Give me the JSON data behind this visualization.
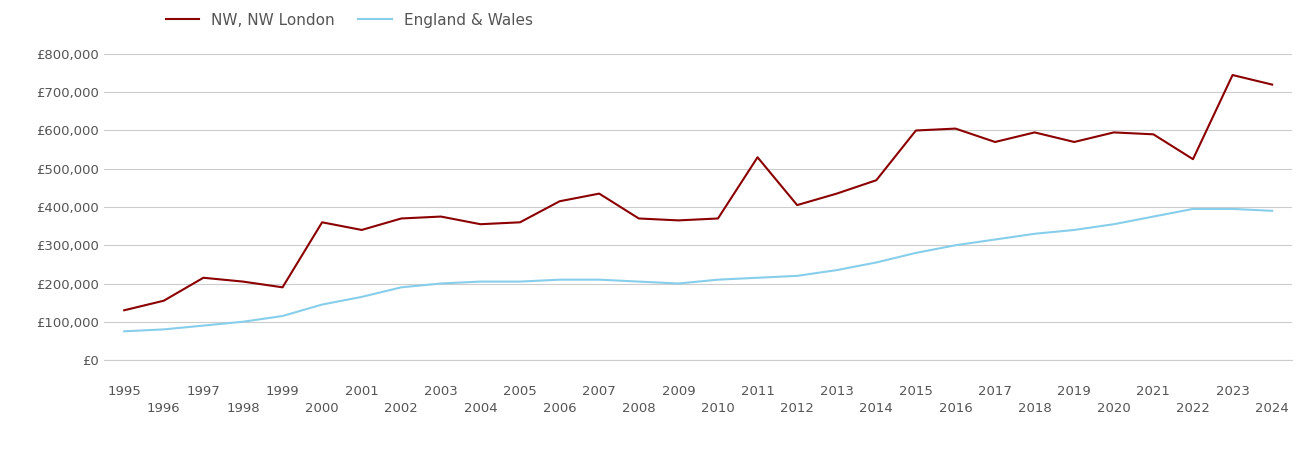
{
  "nw_london_years": [
    1995,
    1996,
    1997,
    1998,
    1999,
    2000,
    2001,
    2002,
    2003,
    2004,
    2005,
    2006,
    2007,
    2008,
    2009,
    2010,
    2011,
    2012,
    2013,
    2014,
    2015,
    2016,
    2017,
    2018,
    2019,
    2020,
    2021,
    2022,
    2023,
    2024
  ],
  "nw_london_values": [
    130000,
    155000,
    215000,
    205000,
    190000,
    360000,
    340000,
    370000,
    375000,
    355000,
    360000,
    415000,
    435000,
    370000,
    365000,
    370000,
    530000,
    405000,
    435000,
    470000,
    600000,
    605000,
    570000,
    595000,
    570000,
    595000,
    590000,
    525000,
    745000,
    720000
  ],
  "england_wales_years": [
    1995,
    1996,
    1997,
    1998,
    1999,
    2000,
    2001,
    2002,
    2003,
    2004,
    2005,
    2006,
    2007,
    2008,
    2009,
    2010,
    2011,
    2012,
    2013,
    2014,
    2015,
    2016,
    2017,
    2018,
    2019,
    2020,
    2021,
    2022,
    2023,
    2024
  ],
  "england_wales_values": [
    75000,
    80000,
    90000,
    100000,
    115000,
    145000,
    165000,
    190000,
    200000,
    205000,
    205000,
    210000,
    210000,
    205000,
    200000,
    210000,
    215000,
    220000,
    235000,
    255000,
    280000,
    300000,
    315000,
    330000,
    340000,
    355000,
    375000,
    395000,
    395000,
    390000
  ],
  "nw_color": "#8b0000",
  "ew_color": "#87ceeb",
  "nw_label": "NW, NW London",
  "ew_label": "England & Wales",
  "ylim": [
    0,
    800000
  ],
  "yticks": [
    0,
    100000,
    200000,
    300000,
    400000,
    500000,
    600000,
    700000,
    800000
  ],
  "ytick_labels": [
    "£0",
    "£100,000",
    "£200,000",
    "£300,000",
    "£400,000",
    "£500,000",
    "£600,000",
    "£700,000",
    "£800,000"
  ],
  "odd_xticks": [
    1995,
    1997,
    1999,
    2001,
    2003,
    2005,
    2007,
    2009,
    2011,
    2013,
    2015,
    2017,
    2019,
    2021,
    2023
  ],
  "even_xticks": [
    1996,
    1998,
    2000,
    2002,
    2004,
    2006,
    2008,
    2010,
    2012,
    2014,
    2016,
    2018,
    2020,
    2022,
    2024
  ],
  "background_color": "#ffffff",
  "grid_color": "#cccccc",
  "line_width": 1.5,
  "legend_fontsize": 11,
  "tick_fontsize": 9.5,
  "tick_color": "#555555",
  "xlim_left": 1994.5,
  "xlim_right": 2024.5
}
